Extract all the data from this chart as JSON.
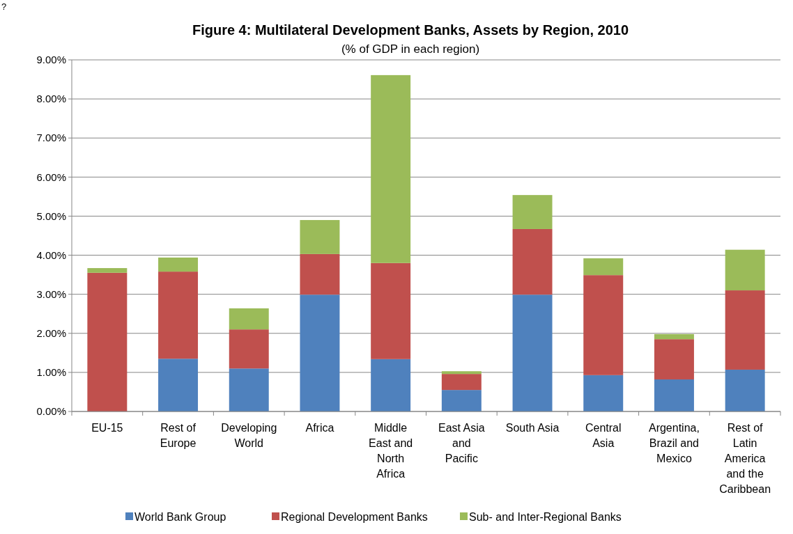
{
  "chart_data": {
    "type": "bar",
    "stacked": true,
    "title": "Figure 4: Multilateral  Development Banks, Assets by Region, 2010",
    "subtitle": "(% of GDP in each region)",
    "annotations": [
      "?"
    ],
    "categories": [
      "EU-15",
      "Rest of Europe",
      "Developing World",
      "Africa",
      "Middle East and North Africa",
      "East Asia and Pacific",
      "South Asia",
      "Central Asia",
      "Argentina, Brazil and Mexico",
      "Rest of Latin America and the Caribbean"
    ],
    "series": [
      {
        "name": "World Bank Group",
        "color": "#4f81bd",
        "values": [
          null,
          1.35,
          1.1,
          2.99,
          1.34,
          0.55,
          2.99,
          0.93,
          0.82,
          1.07
        ]
      },
      {
        "name": "Regional Development Banks",
        "color": "#c0504d",
        "values": [
          3.55,
          2.23,
          1.0,
          1.04,
          2.46,
          0.41,
          1.68,
          2.56,
          1.03,
          2.03
        ]
      },
      {
        "name": "Sub- and Inter-Regional Banks",
        "color": "#9bbb59",
        "values": [
          0.12,
          0.36,
          0.54,
          0.87,
          4.81,
          0.07,
          0.87,
          0.43,
          0.13,
          1.04
        ]
      }
    ],
    "ylim": [
      0,
      9
    ],
    "yticks": [
      {
        "value": 0,
        "label": "0.00%"
      },
      {
        "value": 1,
        "label": "1.00%"
      },
      {
        "value": 2,
        "label": "2.00%"
      },
      {
        "value": 3,
        "label": "3.00%"
      },
      {
        "value": 4,
        "label": "4.00%"
      },
      {
        "value": 5,
        "label": "5.00%"
      },
      {
        "value": 6,
        "label": "6.00%"
      },
      {
        "value": 7,
        "label": "7.00%"
      },
      {
        "value": 8,
        "label": "8.00%"
      },
      {
        "value": 9,
        "label": "9.00%"
      }
    ],
    "grid": "y",
    "legend": "bottom"
  }
}
